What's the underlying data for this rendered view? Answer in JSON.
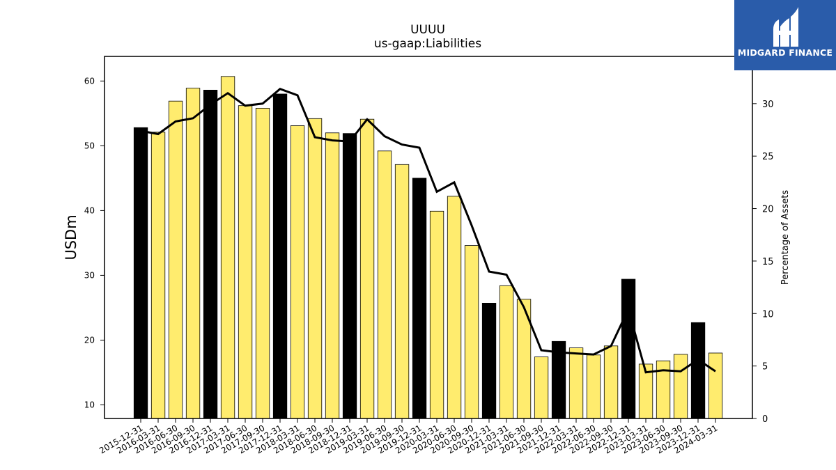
{
  "title": "UUUU",
  "subtitle": "us-gaap:Liabilities",
  "logo": {
    "text": "MIDGARD FINANCE",
    "background": "#2a5caa"
  },
  "chart_data": {
    "type": "bar",
    "ylabel": "USDm",
    "y2label": "Percentage of Assets",
    "ylim": [
      7.9,
      63.8
    ],
    "y2lim": [
      0,
      34.5
    ],
    "yticks": [
      10,
      20,
      30,
      40,
      50,
      60
    ],
    "y2ticks": [
      0,
      5,
      10,
      15,
      20,
      25,
      30
    ],
    "colors": {
      "annual": "#000000",
      "quarterly": "#ffec6e",
      "line": "#000000"
    },
    "categories": [
      "2015-12-31",
      "2016-03-31",
      "2016-06-30",
      "2016-09-30",
      "2016-12-31",
      "2017-03-31",
      "2017-06-30",
      "2017-09-30",
      "2017-12-31",
      "2018-03-31",
      "2018-06-30",
      "2018-09-30",
      "2018-12-31",
      "2019-03-31",
      "2019-06-30",
      "2019-09-30",
      "2019-12-31",
      "2020-03-31",
      "2020-06-30",
      "2020-09-30",
      "2020-12-31",
      "2021-03-31",
      "2021-06-30",
      "2021-09-30",
      "2021-12-31",
      "2022-03-31",
      "2022-06-30",
      "2022-09-30",
      "2022-12-31",
      "2023-03-31",
      "2023-06-30",
      "2023-09-30",
      "2023-12-31",
      "2024-03-31"
    ],
    "series": [
      {
        "values": [
          52.8,
          52.1,
          56.9,
          58.9,
          58.6,
          60.7,
          56.2,
          55.8,
          58.0,
          53.1,
          54.2,
          52.0,
          51.9,
          54.1,
          49.2,
          47.1,
          45.0,
          39.9,
          42.2,
          34.6,
          25.7,
          28.4,
          26.3,
          17.4,
          19.8,
          18.8,
          17.7,
          19.1,
          29.4,
          16.3,
          16.8,
          17.8,
          22.7,
          18.0
        ]
      },
      {
        "type": "line",
        "axis": "right",
        "values": [
          27.4,
          27.1,
          28.3,
          28.6,
          29.9,
          31.0,
          29.8,
          30.0,
          31.4,
          30.8,
          26.8,
          26.5,
          26.4,
          28.5,
          26.9,
          26.1,
          25.8,
          21.6,
          22.5,
          18.4,
          14.0,
          13.7,
          10.6,
          6.5,
          6.3,
          6.2,
          6.1,
          6.9,
          10.4,
          4.4,
          4.6,
          4.5,
          5.6,
          4.5
        ]
      }
    ],
    "annual_flags": [
      1,
      0,
      0,
      0,
      1,
      0,
      0,
      0,
      1,
      0,
      0,
      0,
      1,
      0,
      0,
      0,
      1,
      0,
      0,
      0,
      1,
      0,
      0,
      0,
      1,
      0,
      0,
      0,
      1,
      0,
      0,
      0,
      1,
      0
    ]
  }
}
